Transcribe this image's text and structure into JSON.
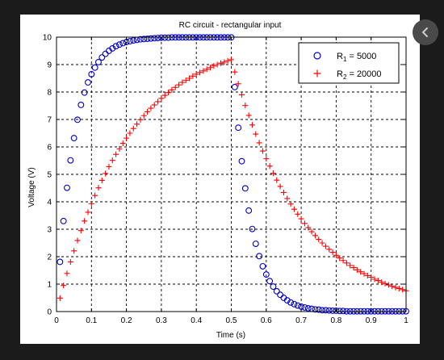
{
  "chart_data": {
    "type": "scatter",
    "title": "RC circuit - rectangular input",
    "xlabel": "Time (s)",
    "ylabel": "Voltage (V)",
    "xlim": [
      0,
      1
    ],
    "ylim": [
      0,
      10
    ],
    "xticks": [
      "0",
      "0.1",
      "0.2",
      "0.3",
      "0.4",
      "0.5",
      "0.6",
      "0.7",
      "0.8",
      "0.9",
      "1"
    ],
    "yticks": [
      "0",
      "1",
      "2",
      "3",
      "4",
      "5",
      "6",
      "7",
      "8",
      "9",
      "10"
    ],
    "grid": true,
    "legend_position": "top-right",
    "series": [
      {
        "name": "R1 = 5000",
        "legend_main": "R",
        "legend_sub": "1",
        "legend_rest": " = 5000",
        "marker": "circle",
        "color": "#0000cc",
        "x": [
          0.01,
          0.02,
          0.03,
          0.04,
          0.05,
          0.06,
          0.07,
          0.08,
          0.09,
          0.1,
          0.11,
          0.12,
          0.13,
          0.14,
          0.15,
          0.16,
          0.17,
          0.18,
          0.19,
          0.2,
          0.21,
          0.22,
          0.23,
          0.24,
          0.25,
          0.26,
          0.27,
          0.28,
          0.29,
          0.3,
          0.31,
          0.32,
          0.33,
          0.34,
          0.35,
          0.36,
          0.37,
          0.38,
          0.39,
          0.4,
          0.41,
          0.42,
          0.43,
          0.44,
          0.45,
          0.46,
          0.47,
          0.48,
          0.49,
          0.5,
          0.51,
          0.52,
          0.53,
          0.54,
          0.55,
          0.56,
          0.57,
          0.58,
          0.59,
          0.6,
          0.61,
          0.62,
          0.63,
          0.64,
          0.65,
          0.66,
          0.67,
          0.68,
          0.69,
          0.7,
          0.71,
          0.72,
          0.73,
          0.74,
          0.75,
          0.76,
          0.77,
          0.78,
          0.79,
          0.8,
          0.81,
          0.82,
          0.83,
          0.84,
          0.85,
          0.86,
          0.87,
          0.88,
          0.89,
          0.9,
          0.91,
          0.92,
          0.93,
          0.94,
          0.95,
          0.96,
          0.97,
          0.98,
          0.99,
          1.0
        ],
        "y": [
          1.81,
          3.3,
          4.51,
          5.51,
          6.32,
          6.99,
          7.53,
          7.98,
          8.35,
          8.65,
          8.89,
          9.09,
          9.26,
          9.39,
          9.5,
          9.59,
          9.67,
          9.73,
          9.78,
          9.82,
          9.85,
          9.88,
          9.9,
          9.92,
          9.93,
          9.94,
          9.95,
          9.96,
          9.97,
          9.98,
          9.98,
          9.98,
          9.99,
          9.99,
          9.99,
          9.99,
          9.99,
          9.99,
          9.99,
          9.99,
          9.99,
          9.99,
          9.99,
          9.99,
          9.99,
          9.99,
          9.99,
          9.99,
          9.99,
          9.99,
          8.18,
          6.7,
          5.48,
          4.49,
          3.68,
          3.01,
          2.47,
          2.02,
          1.65,
          1.35,
          1.11,
          0.91,
          0.74,
          0.61,
          0.5,
          0.41,
          0.33,
          0.27,
          0.22,
          0.18,
          0.15,
          0.12,
          0.1,
          0.08,
          0.07,
          0.05,
          0.05,
          0.04,
          0.03,
          0.03,
          0.02,
          0.02,
          0.01,
          0.01,
          0.01,
          0.01,
          0.01,
          0.01,
          0.01,
          0.01,
          0.01,
          0.01,
          0.01,
          0.01,
          0.01,
          0.01,
          0.01,
          0.01,
          0.01,
          0.01
        ]
      },
      {
        "name": "R2 = 20000",
        "legend_main": "R",
        "legend_sub": "2",
        "legend_rest": " = 20000",
        "marker": "plus",
        "color": "#ff0000",
        "x": [
          0.01,
          0.02,
          0.03,
          0.04,
          0.05,
          0.06,
          0.07,
          0.08,
          0.09,
          0.1,
          0.11,
          0.12,
          0.13,
          0.14,
          0.15,
          0.16,
          0.17,
          0.18,
          0.19,
          0.2,
          0.21,
          0.22,
          0.23,
          0.24,
          0.25,
          0.26,
          0.27,
          0.28,
          0.29,
          0.3,
          0.31,
          0.32,
          0.33,
          0.34,
          0.35,
          0.36,
          0.37,
          0.38,
          0.39,
          0.4,
          0.41,
          0.42,
          0.43,
          0.44,
          0.45,
          0.46,
          0.47,
          0.48,
          0.49,
          0.5,
          0.51,
          0.52,
          0.53,
          0.54,
          0.55,
          0.56,
          0.57,
          0.58,
          0.59,
          0.6,
          0.61,
          0.62,
          0.63,
          0.64,
          0.65,
          0.66,
          0.67,
          0.68,
          0.69,
          0.7,
          0.71,
          0.72,
          0.73,
          0.74,
          0.75,
          0.76,
          0.77,
          0.78,
          0.79,
          0.8,
          0.81,
          0.82,
          0.83,
          0.84,
          0.85,
          0.86,
          0.87,
          0.88,
          0.89,
          0.9,
          0.91,
          0.92,
          0.93,
          0.94,
          0.95,
          0.96,
          0.97,
          0.98,
          0.99,
          1.0
        ],
        "y": [
          0.49,
          0.95,
          1.39,
          1.81,
          2.21,
          2.59,
          2.95,
          3.3,
          3.62,
          3.93,
          4.23,
          4.51,
          4.78,
          5.03,
          5.28,
          5.51,
          5.73,
          5.93,
          6.13,
          6.32,
          6.5,
          6.67,
          6.83,
          6.99,
          7.14,
          7.28,
          7.41,
          7.53,
          7.65,
          7.77,
          7.88,
          7.98,
          8.08,
          8.17,
          8.26,
          8.35,
          8.43,
          8.5,
          8.58,
          8.65,
          8.71,
          8.77,
          8.83,
          8.89,
          8.95,
          9.0,
          9.05,
          9.09,
          9.14,
          9.18,
          8.73,
          8.3,
          7.9,
          7.51,
          7.15,
          6.8,
          6.47,
          6.15,
          5.85,
          5.57,
          5.3,
          5.04,
          4.79,
          4.56,
          4.34,
          4.12,
          3.92,
          3.73,
          3.55,
          3.38,
          3.21,
          3.06,
          2.91,
          2.77,
          2.63,
          2.5,
          2.38,
          2.27,
          2.16,
          2.05,
          1.95,
          1.86,
          1.77,
          1.68,
          1.6,
          1.52,
          1.45,
          1.38,
          1.31,
          1.25,
          1.18,
          1.13,
          1.07,
          1.02,
          0.97,
          0.92,
          0.88,
          0.84,
          0.8,
          0.76
        ]
      }
    ]
  },
  "ui": {
    "nav_icon": "chevron-left-icon"
  }
}
